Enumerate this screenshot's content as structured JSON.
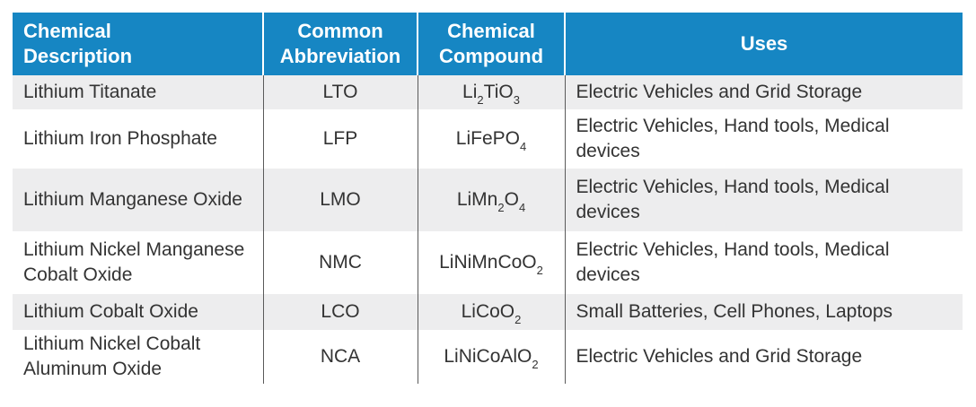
{
  "table": {
    "headers": [
      [
        "Chemical",
        "Description"
      ],
      [
        "Common",
        "Abbreviation"
      ],
      [
        "Chemical",
        "Compound"
      ],
      [
        "Uses"
      ]
    ],
    "rows": [
      {
        "description": "Lithium Titanate",
        "abbreviation": "LTO",
        "compound": [
          [
            "Li",
            "2"
          ],
          [
            "TiO",
            "3"
          ]
        ],
        "uses": "Electric Vehicles and Grid Storage"
      },
      {
        "description": "Lithium Iron Phosphate",
        "abbreviation": "LFP",
        "compound": [
          [
            "LiFePO",
            "4"
          ]
        ],
        "uses": "Electric Vehicles, Hand tools, Medical devices"
      },
      {
        "description": "Lithium Manganese Oxide",
        "abbreviation": "LMO",
        "compound": [
          [
            "LiMn",
            "2"
          ],
          [
            "O",
            "4"
          ]
        ],
        "uses": "Electric Vehicles, Hand tools, Medical devices"
      },
      {
        "description": "Lithium Nickel Manganese Cobalt Oxide",
        "abbreviation": "NMC",
        "compound": [
          [
            "LiNiMnCoO",
            "2"
          ]
        ],
        "uses": "Electric Vehicles, Hand tools, Medical devices"
      },
      {
        "description": "Lithium Cobalt Oxide",
        "abbreviation": "LCO",
        "compound": [
          [
            "LiCoO",
            "2"
          ]
        ],
        "uses": "Small Batteries, Cell Phones, Laptops"
      },
      {
        "description": "Lithium Nickel Cobalt Aluminum Oxide",
        "abbreviation": "NCA",
        "compound": [
          [
            "LiNiCoAlO",
            "2"
          ]
        ],
        "uses": "Electric Vehicles and Grid Storage"
      }
    ]
  },
  "colors": {
    "header_bg": "#1686c3",
    "shade_row": "#ededee",
    "text": "#333333"
  }
}
